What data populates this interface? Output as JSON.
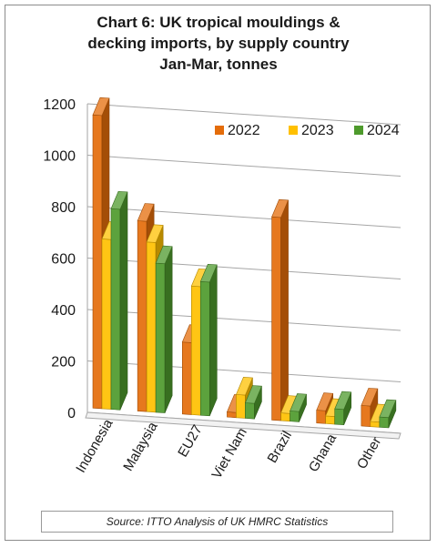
{
  "title_lines": [
    "Chart 6: UK tropical mouldings &",
    "decking imports, by supply country",
    "Jan-Mar, tonnes"
  ],
  "source": "Source: ITTO Analysis of UK HMRC Statistics",
  "chart_data": {
    "type": "bar",
    "title": "Chart 6: UK tropical mouldings & decking imports, by supply country Jan-Mar, tonnes",
    "categories": [
      "Indonesia",
      "Malaysia",
      "EU27",
      "Viet Nam",
      "Brazil",
      "Ghana",
      "Other"
    ],
    "series": [
      {
        "name": "2022",
        "color": "#e46c0a",
        "values": [
          1140,
          740,
          280,
          20,
          790,
          50,
          80
        ]
      },
      {
        "name": "2023",
        "color": "#ffc000",
        "values": [
          660,
          660,
          500,
          90,
          30,
          30,
          20
        ]
      },
      {
        "name": "2024",
        "color": "#4e9a2c",
        "values": [
          780,
          580,
          520,
          60,
          40,
          60,
          40
        ]
      }
    ],
    "ylim": [
      0,
      1200
    ],
    "yticks": [
      "0",
      "200",
      "400",
      "600",
      "800",
      "1000",
      "1200"
    ],
    "legend": "top-right",
    "grid": true,
    "style": "3d-clustered-column"
  }
}
